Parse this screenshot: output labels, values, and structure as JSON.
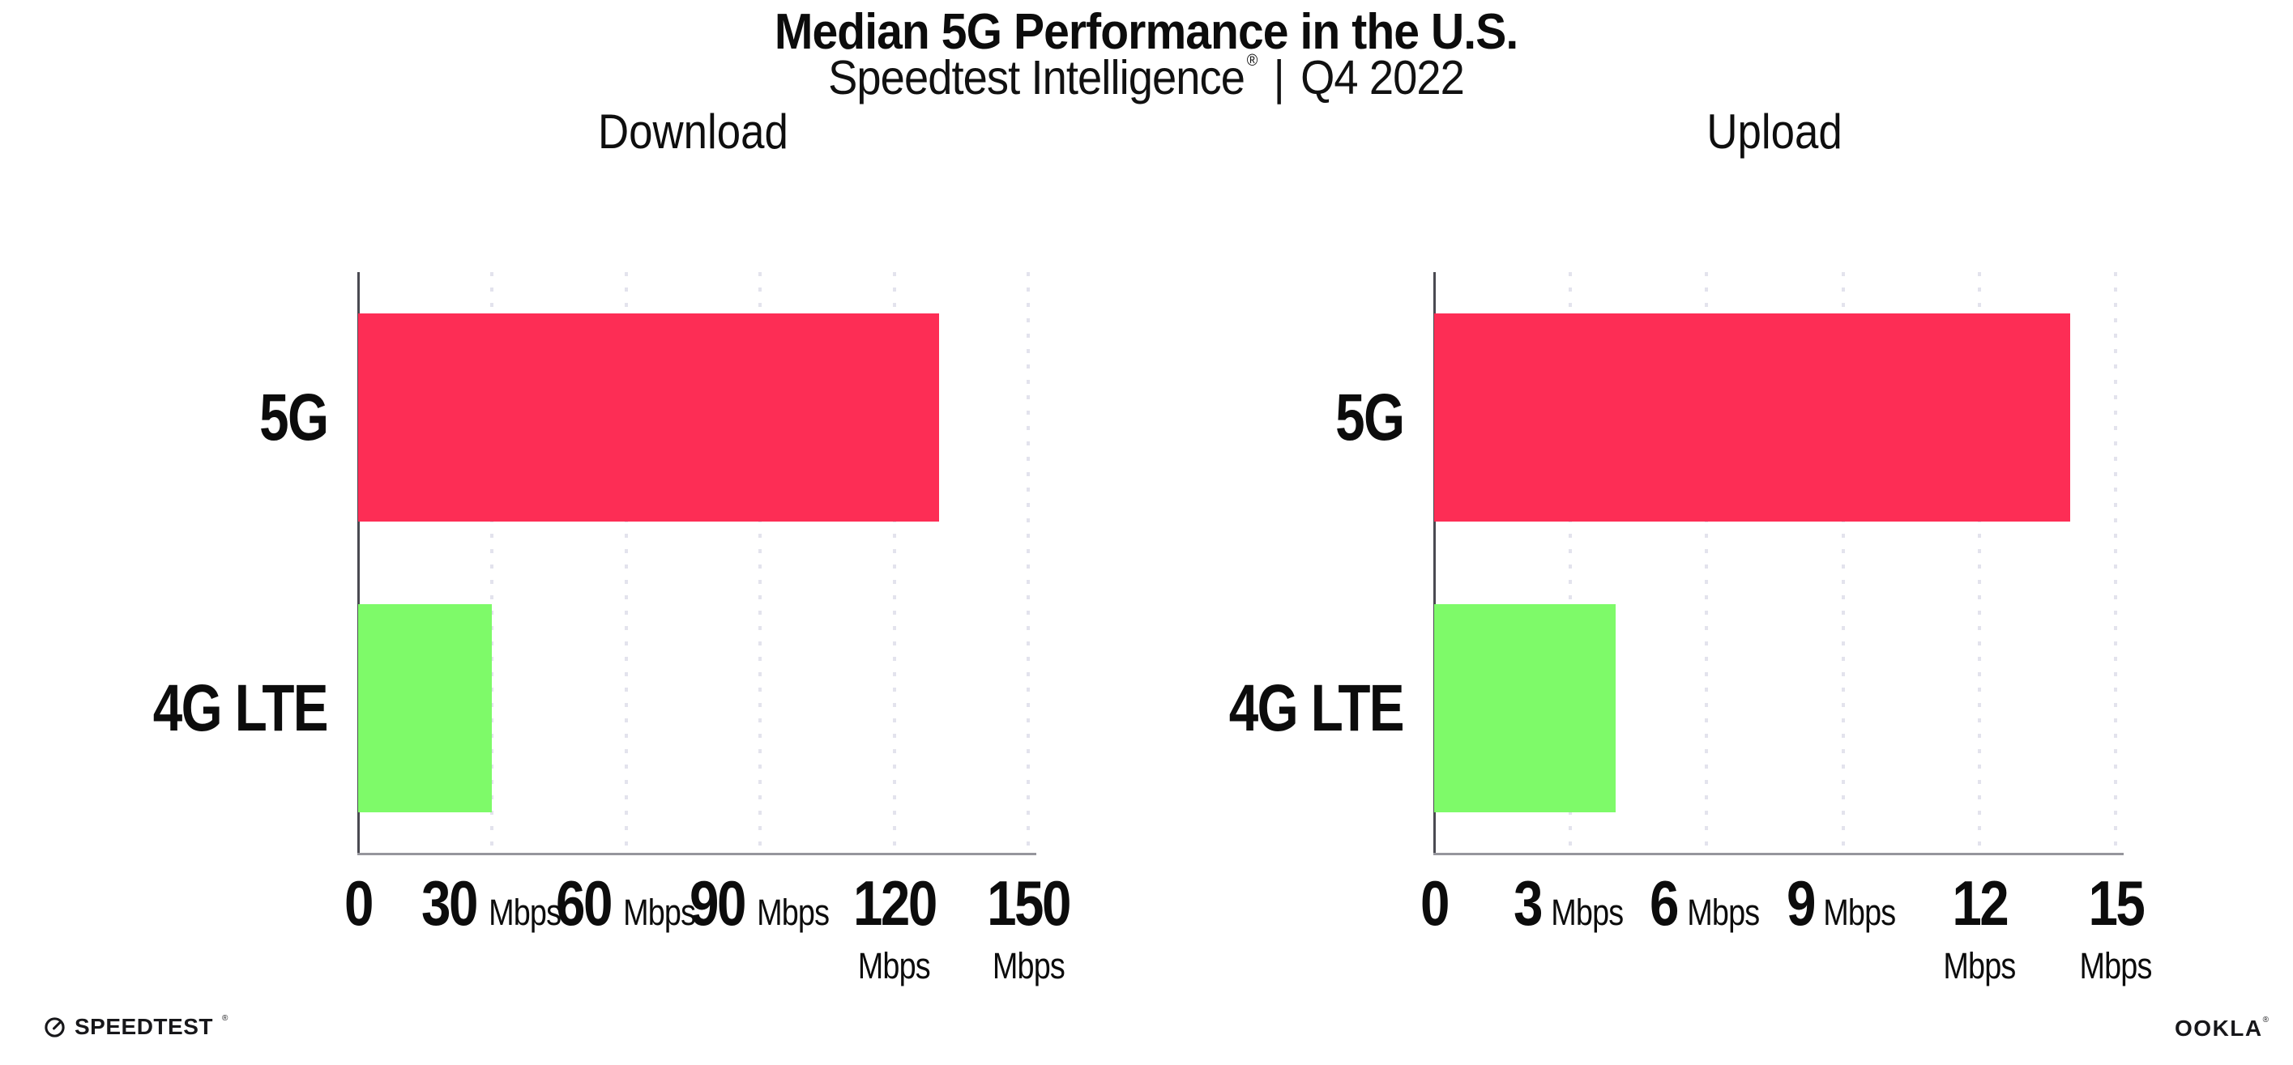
{
  "header": {
    "title": "Median 5G Performance in the U.S.",
    "subtitle_brand": "Speedtest Intelligence",
    "subtitle_mark": "®",
    "subtitle_separator": "|",
    "subtitle_period": "Q4 2022"
  },
  "chart_data": [
    {
      "type": "bar",
      "orientation": "horizontal",
      "title": "Download",
      "categories": [
        "5G",
        "4G LTE"
      ],
      "values": [
        130,
        30
      ],
      "unit": "Mbps",
      "xlim": [
        0,
        150
      ],
      "xticks": [
        0,
        30,
        60,
        90,
        120,
        150
      ],
      "bar_colors": [
        "#fd2d55",
        "#7efa69"
      ],
      "grid": "dotted-vertical",
      "legend": "none",
      "xlabel": "",
      "ylabel": ""
    },
    {
      "type": "bar",
      "orientation": "horizontal",
      "title": "Upload",
      "categories": [
        "5G",
        "4G LTE"
      ],
      "values": [
        14,
        4
      ],
      "unit": "Mbps",
      "xlim": [
        0,
        15
      ],
      "xticks": [
        0,
        3,
        6,
        9,
        12,
        15
      ],
      "bar_colors": [
        "#fd2d55",
        "#7efa69"
      ],
      "grid": "dotted-vertical",
      "legend": "none",
      "xlabel": "",
      "ylabel": ""
    }
  ],
  "footer": {
    "speedtest_text": "SPEEDTEST",
    "speedtest_mark": "®",
    "speedtest_icon": "gauge-icon",
    "ookla_text": "OOKLA",
    "ookla_mark": "®"
  },
  "colors": {
    "bar_5g": "#fd2d55",
    "bar_4g_lte": "#7efa69",
    "gridline": "#e3e3ed",
    "axis_spine": "#4a4a52",
    "axis_bottom": "#96969c",
    "text": "#0c0c0c",
    "background": "#ffffff"
  }
}
